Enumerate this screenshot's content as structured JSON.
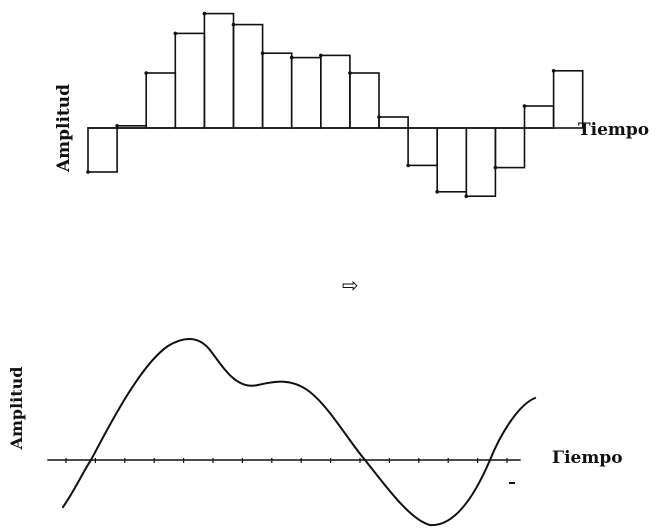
{
  "top_panel": {
    "ylabel": "Amplitud",
    "xlabel": "Tiempo"
  },
  "arrow": "⇨",
  "bottom_panel": {
    "ylabel": "Amplitud",
    "xlabel": "Γiempo"
  },
  "chart_data": [
    {
      "type": "bar",
      "title": "",
      "xlabel": "Tiempo",
      "ylabel": "Amplitud",
      "values": [
        -1.0,
        0.05,
        1.25,
        2.15,
        2.6,
        2.35,
        1.7,
        1.6,
        1.65,
        1.25,
        0.25,
        -0.85,
        -1.45,
        -1.55,
        -0.9,
        0.5,
        1.3
      ]
    },
    {
      "type": "line",
      "title": "",
      "xlabel": "Γiempo",
      "ylabel": "Amplitud",
      "ticks": 16,
      "description_points": [
        {
          "x": 0.0,
          "y": -1.0
        },
        {
          "x": 1.5,
          "y": 0.0
        },
        {
          "x": 4.2,
          "y": 2.6
        },
        {
          "x": 6.0,
          "y": 1.6
        },
        {
          "x": 8.0,
          "y": 1.55
        },
        {
          "x": 10.0,
          "y": 0.0
        },
        {
          "x": 12.6,
          "y": -1.55
        },
        {
          "x": 14.6,
          "y": 0.0
        },
        {
          "x": 15.8,
          "y": 1.3
        }
      ]
    }
  ]
}
